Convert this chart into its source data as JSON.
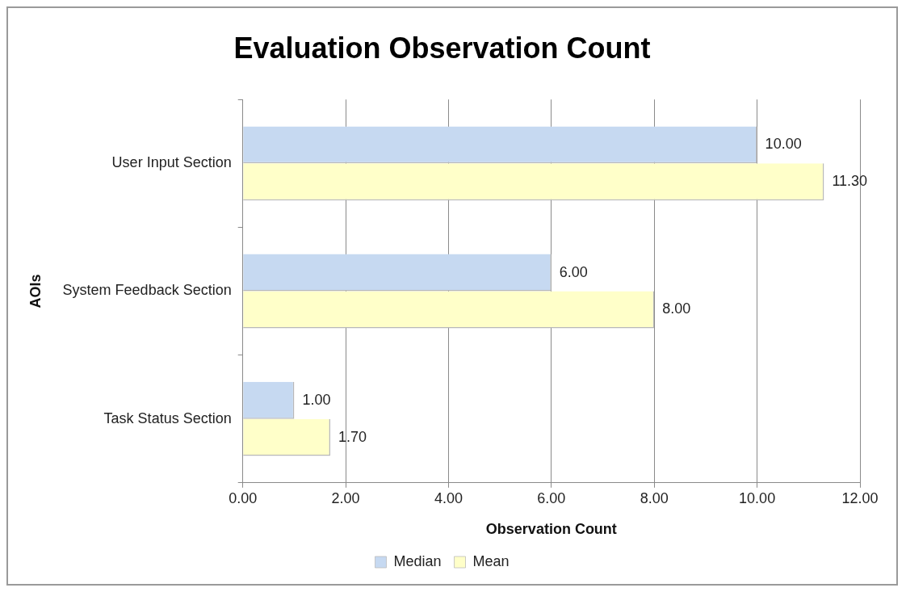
{
  "chart_data": {
    "type": "bar",
    "orientation": "horizontal",
    "title": "Evaluation Observation Count",
    "xlabel": "Observation Count",
    "ylabel": "AOIs",
    "categories": [
      "User Input Section",
      "System Feedback Section",
      "Task Status Section"
    ],
    "series": [
      {
        "name": "Median",
        "color": "#c6d9f1",
        "values": [
          10,
          6,
          1
        ],
        "value_labels": [
          "10.00",
          "6.00",
          "1.00"
        ]
      },
      {
        "name": "Mean",
        "color": "#ffffc9",
        "values": [
          11.3,
          8,
          1.7
        ],
        "value_labels": [
          "11.30",
          "8.00",
          "1.70"
        ]
      }
    ],
    "xlim": [
      0,
      12
    ],
    "xticks": [
      {
        "value": 0,
        "label": "0.00"
      },
      {
        "value": 2,
        "label": "2.00"
      },
      {
        "value": 4,
        "label": "4.00"
      },
      {
        "value": 6,
        "label": "6.00"
      },
      {
        "value": 8,
        "label": "8.00"
      },
      {
        "value": 10,
        "label": "10.00"
      },
      {
        "value": 12,
        "label": "12.00"
      }
    ],
    "grid": "x",
    "legend": "bottom"
  }
}
